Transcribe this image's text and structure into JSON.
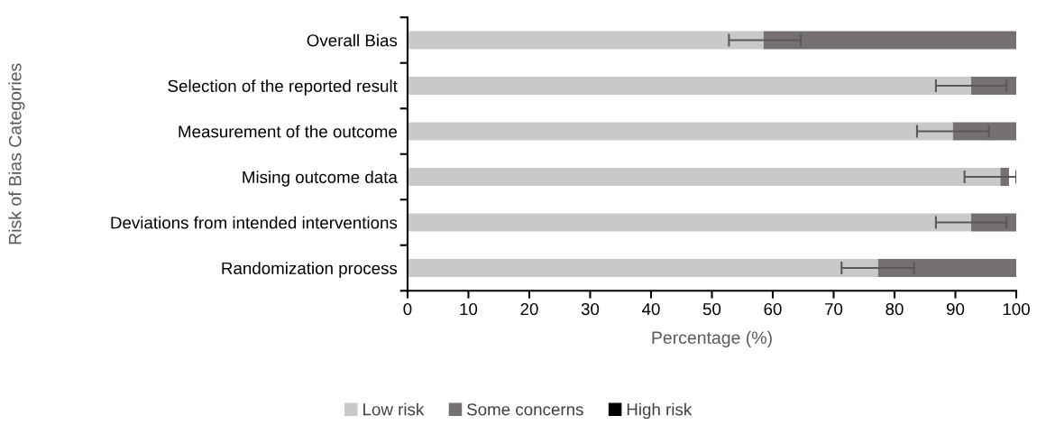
{
  "chart_data": {
    "type": "bar",
    "orientation": "horizontal",
    "stacked": true,
    "xlabel": "Percentage (%)",
    "ylabel": "Risk of Bias Categories",
    "categories": [
      "Overall Bias",
      "Selection of the reported result",
      "Measurement of the outcome",
      "Mising outcome data",
      "Deviations from intended interventions",
      "Randomization process"
    ],
    "series": [
      {
        "name": "Low risk",
        "color": "#c9c9c9",
        "values": [
          58.5,
          92.6,
          89.6,
          97.4,
          92.6,
          77.3
        ],
        "errors": [
          [
            52.8,
            64.6
          ],
          [
            86.8,
            98.4
          ],
          [
            83.7,
            95.5
          ],
          [
            91.5,
            100
          ],
          [
            86.8,
            98.4
          ],
          [
            71.3,
            83.2
          ]
        ]
      },
      {
        "name": "Some concerns",
        "color": "#767171",
        "values": [
          41.5,
          7.4,
          10.4,
          1.4,
          7.4,
          22.7
        ]
      },
      {
        "name": "High risk",
        "color": "#000000",
        "values": [
          0,
          0,
          0,
          0,
          0,
          0
        ]
      }
    ],
    "xlim": [
      0,
      100
    ],
    "xticks": [
      0,
      10,
      20,
      30,
      40,
      50,
      60,
      70,
      80,
      90,
      100
    ],
    "grid": false,
    "legend": "bottom"
  }
}
